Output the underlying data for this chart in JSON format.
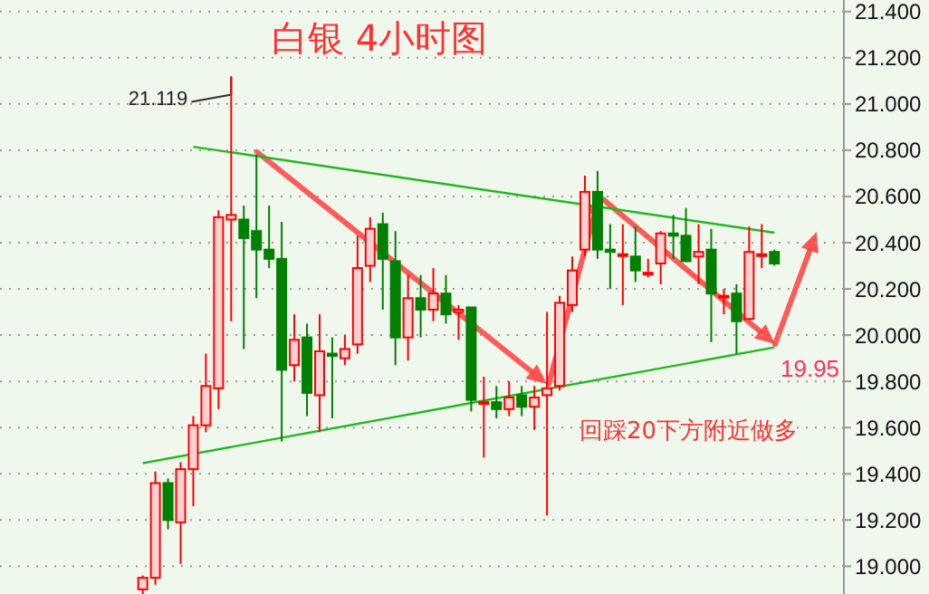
{
  "chart_data": {
    "type": "candlestick",
    "title": "白银 4小时图",
    "categories": [
      null,
      null,
      null,
      null,
      null,
      null,
      null,
      null,
      null,
      null,
      null,
      null,
      null,
      null,
      null,
      null,
      null,
      null,
      null,
      null,
      null,
      null,
      null,
      null,
      null,
      null,
      null,
      null,
      null,
      null,
      null,
      null,
      null,
      null,
      null,
      null,
      null,
      null,
      null,
      null,
      null,
      null,
      null,
      null,
      null,
      null,
      null,
      null,
      null,
      null,
      null
    ],
    "ohlc": [
      [
        18.9,
        18.96,
        18.88,
        18.95
      ],
      [
        18.95,
        19.41,
        18.92,
        19.36
      ],
      [
        19.36,
        19.38,
        19.16,
        19.2
      ],
      [
        19.19,
        19.45,
        19.01,
        19.42
      ],
      [
        19.42,
        19.65,
        19.26,
        19.61
      ],
      [
        19.61,
        19.92,
        19.58,
        19.78
      ],
      [
        19.77,
        20.54,
        19.68,
        20.51
      ],
      [
        20.5,
        21.119,
        20.06,
        20.52
      ],
      [
        20.5,
        20.56,
        19.94,
        20.42
      ],
      [
        20.45,
        20.78,
        20.16,
        20.37
      ],
      [
        20.37,
        20.56,
        20.29,
        20.33
      ],
      [
        20.33,
        20.49,
        19.54,
        19.85
      ],
      [
        19.87,
        20.09,
        19.8,
        19.98
      ],
      [
        19.99,
        20.05,
        19.65,
        19.75
      ],
      [
        19.74,
        20.09,
        19.58,
        19.93
      ],
      [
        19.92,
        19.99,
        19.64,
        19.91
      ],
      [
        19.9,
        20.0,
        19.87,
        19.94
      ],
      [
        19.96,
        20.43,
        19.92,
        20.29
      ],
      [
        20.3,
        20.51,
        20.23,
        20.46
      ],
      [
        20.48,
        20.53,
        20.11,
        20.33
      ],
      [
        20.32,
        20.45,
        19.87,
        19.99
      ],
      [
        19.99,
        20.26,
        19.89,
        20.16
      ],
      [
        20.16,
        20.26,
        19.99,
        20.11
      ],
      [
        20.11,
        20.29,
        20.06,
        20.18
      ],
      [
        20.18,
        20.26,
        20.05,
        20.09
      ],
      [
        20.1,
        20.13,
        19.98,
        20.11
      ],
      [
        20.12,
        20.12,
        19.67,
        19.72
      ],
      [
        19.71,
        19.82,
        19.47,
        19.71
      ],
      [
        19.71,
        19.78,
        19.64,
        19.68
      ],
      [
        19.68,
        19.8,
        19.65,
        19.73
      ],
      [
        19.74,
        19.78,
        19.65,
        19.69
      ],
      [
        19.69,
        19.78,
        19.59,
        19.73
      ],
      [
        19.74,
        20.1,
        19.22,
        19.77
      ],
      [
        19.78,
        20.17,
        19.76,
        20.14
      ],
      [
        20.13,
        20.34,
        20.1,
        20.28
      ],
      [
        20.37,
        20.69,
        20.34,
        20.62
      ],
      [
        20.62,
        20.71,
        20.33,
        20.37
      ],
      [
        20.37,
        20.48,
        20.2,
        20.36
      ],
      [
        20.35,
        20.48,
        20.13,
        20.35
      ],
      [
        20.34,
        20.47,
        20.23,
        20.28
      ],
      [
        20.27,
        20.33,
        20.25,
        20.27
      ],
      [
        20.31,
        20.45,
        20.22,
        20.44
      ],
      [
        20.44,
        20.52,
        20.33,
        20.43
      ],
      [
        20.43,
        20.55,
        20.32,
        20.32
      ],
      [
        20.34,
        20.48,
        20.22,
        20.36
      ],
      [
        20.37,
        20.46,
        19.97,
        20.18
      ],
      [
        20.17,
        20.2,
        20.09,
        20.17
      ],
      [
        20.18,
        20.22,
        19.92,
        20.06
      ],
      [
        20.07,
        20.47,
        20.07,
        20.36
      ],
      [
        20.35,
        20.48,
        20.29,
        20.35
      ],
      [
        20.36,
        20.37,
        20.3,
        20.31
      ]
    ],
    "colors": [
      "#ff0000",
      "#ff0000",
      "#008000",
      "#ff0000",
      "#ff0000",
      "#ff0000",
      "#ff0000",
      "#ff0000",
      "#008000",
      "#008000",
      "#008000",
      "#008000",
      "#ff0000",
      "#008000",
      "#ff0000",
      "#008000",
      "#ff0000",
      "#ff0000",
      "#ff0000",
      "#008000",
      "#008000",
      "#ff0000",
      "#008000",
      "#ff0000",
      "#008000",
      "#ff0000",
      "#008000",
      "#ff0000",
      "#008000",
      "#ff0000",
      "#008000",
      "#ff0000",
      "#ff0000",
      "#ff0000",
      "#ff0000",
      "#ff0000",
      "#008000",
      "#008000",
      "#ff0000",
      "#008000",
      "#ff0000",
      "#ff0000",
      "#008000",
      "#008000",
      "#ff0000",
      "#008000",
      "#ff0000",
      "#008000",
      "#ff0000",
      "#ff0000",
      "#008000"
    ],
    "series": [
      {
        "type": "line",
        "color": "#1fb81f",
        "values": [
          null,
          null,
          null,
          null,
          20.815,
          null,
          null,
          null,
          null,
          null,
          null,
          null,
          null,
          null,
          null,
          null,
          null,
          null,
          null,
          null,
          null,
          null,
          null,
          null,
          null,
          null,
          null,
          null,
          null,
          null,
          null,
          null,
          null,
          null,
          null,
          null,
          null,
          null,
          null,
          null,
          null,
          null,
          null,
          null,
          null,
          null,
          null,
          null,
          null,
          null,
          20.443
        ]
      },
      {
        "type": "line",
        "color": "#1fb81f",
        "values": [
          19.446,
          null,
          null,
          null,
          null,
          null,
          null,
          null,
          null,
          null,
          null,
          null,
          null,
          null,
          null,
          null,
          null,
          null,
          null,
          null,
          null,
          null,
          null,
          null,
          null,
          null,
          null,
          null,
          null,
          null,
          null,
          null,
          null,
          null,
          null,
          null,
          null,
          null,
          null,
          null,
          null,
          null,
          null,
          null,
          null,
          null,
          null,
          null,
          null,
          null,
          19.947
        ]
      }
    ],
    "ylim": [
      18.88,
      21.45
    ],
    "yticks": [
      {
        "value": 19.0,
        "label": "19.000"
      },
      {
        "value": 19.2,
        "label": "19.200"
      },
      {
        "value": 19.4,
        "label": "19.400"
      },
      {
        "value": 19.6,
        "label": "19.600"
      },
      {
        "value": 19.8,
        "label": "19.800"
      },
      {
        "value": 20.0,
        "label": "20.000"
      },
      {
        "value": 20.2,
        "label": "20.200"
      },
      {
        "value": 20.4,
        "label": "20.400"
      },
      {
        "value": 20.6,
        "label": "20.600"
      },
      {
        "value": 20.8,
        "label": "20.800"
      },
      {
        "value": 21.0,
        "label": "21.000"
      },
      {
        "value": 21.2,
        "label": "21.200"
      },
      {
        "value": 21.4,
        "label": "21.400"
      }
    ],
    "grid": "y",
    "tick_labels": "y",
    "annotations": [
      "21.119",
      "19.95",
      "回踩20下方附近做多"
    ]
  }
}
